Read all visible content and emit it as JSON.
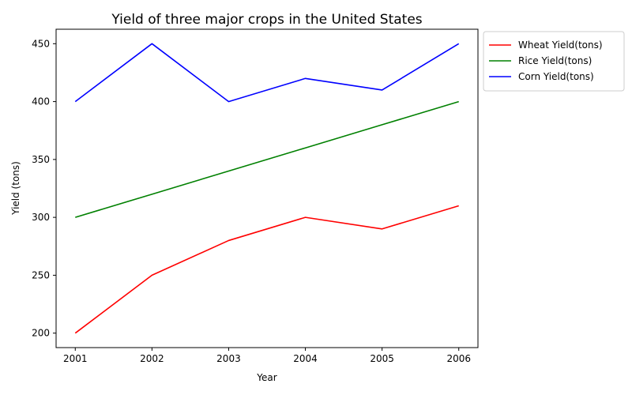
{
  "chart_data": {
    "type": "line",
    "title": "Yield of three major crops in the United States",
    "xlabel": "Year",
    "ylabel": "Yield (tons)",
    "x": [
      2001,
      2002,
      2003,
      2004,
      2005,
      2006
    ],
    "x_ticks": [
      "2001",
      "2002",
      "2003",
      "2004",
      "2005",
      "2006"
    ],
    "y_ticks": [
      "200",
      "250",
      "300",
      "350",
      "400",
      "450"
    ],
    "xlim": [
      2000.75,
      2006.25
    ],
    "ylim": [
      187.5,
      462.5
    ],
    "grid": false,
    "legend_position": "outside-top-right",
    "series": [
      {
        "name": "Wheat Yield(tons)",
        "color": "#ff0000",
        "values": [
          200,
          250,
          280,
          300,
          290,
          310
        ]
      },
      {
        "name": "Rice Yield(tons)",
        "color": "#008000",
        "values": [
          300,
          320,
          340,
          360,
          380,
          400
        ]
      },
      {
        "name": "Corn Yield(tons)",
        "color": "#0000ff",
        "values": [
          400,
          450,
          400,
          420,
          410,
          450
        ]
      }
    ]
  }
}
